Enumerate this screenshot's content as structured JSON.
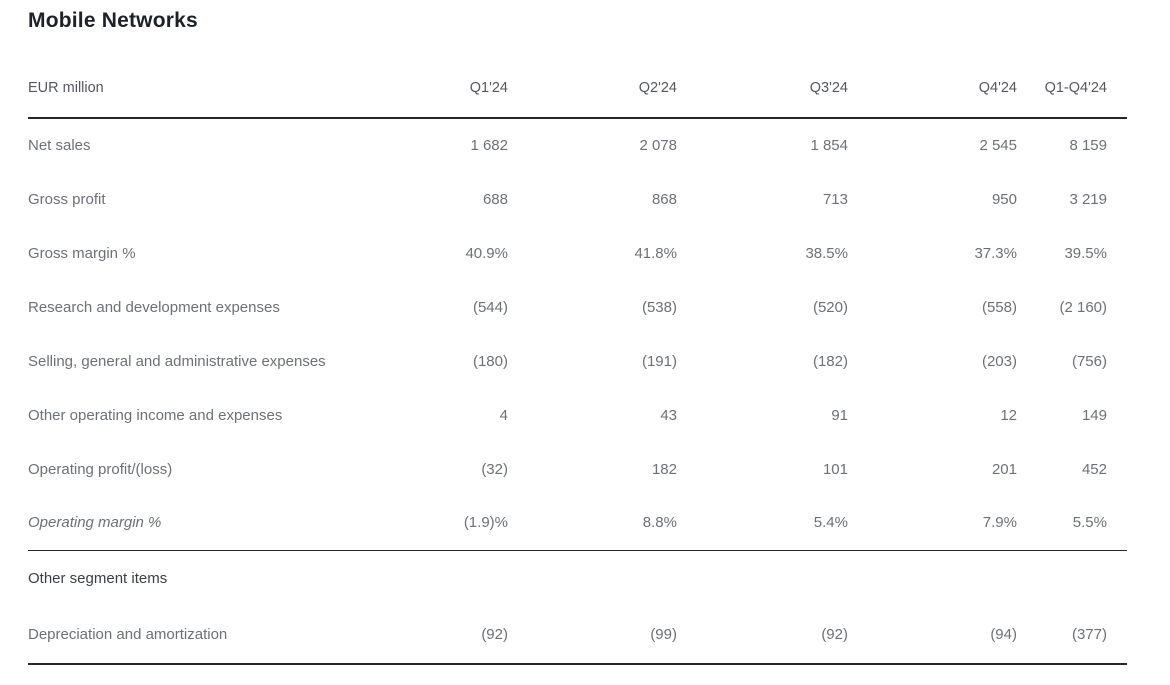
{
  "page": {
    "title": "Mobile Networks"
  },
  "table": {
    "unit_label": "EUR million",
    "columns": [
      "Q1'24",
      "Q2'24",
      "Q3'24",
      "Q4'24",
      "Q1-Q4'24"
    ],
    "rows": [
      {
        "label": "Net sales",
        "style": "normal",
        "values": [
          "1 682",
          "2 078",
          "1 854",
          "2 545",
          "8 159"
        ]
      },
      {
        "label": "Gross profit",
        "style": "normal",
        "values": [
          "688",
          "868",
          "713",
          "950",
          "3 219"
        ]
      },
      {
        "label": "Gross margin %",
        "style": "normal",
        "values": [
          "40.9%",
          "41.8%",
          "38.5%",
          "37.3%",
          "39.5%"
        ]
      },
      {
        "label": "Research and development expenses",
        "style": "normal",
        "values": [
          "(544)",
          "(538)",
          "(520)",
          "(558)",
          "(2 160)"
        ]
      },
      {
        "label": "Selling, general and administrative expenses",
        "style": "normal",
        "values": [
          "(180)",
          "(191)",
          "(182)",
          "(203)",
          "(756)"
        ]
      },
      {
        "label": "Other operating income and expenses",
        "style": "normal",
        "values": [
          "4",
          "43",
          "91",
          "12",
          "149"
        ]
      },
      {
        "label": "Operating profit/(loss)",
        "style": "normal",
        "values": [
          "(32)",
          "182",
          "101",
          "201",
          "452"
        ]
      },
      {
        "label": "Operating margin %",
        "style": "italic",
        "values": [
          "(1.9)%",
          "8.8%",
          "5.4%",
          "7.9%",
          "5.5%"
        ]
      }
    ],
    "section": {
      "label": "Other segment items",
      "rows": [
        {
          "label": "Depreciation and amortization",
          "style": "normal",
          "values": [
            "(92)",
            "(99)",
            "(92)",
            "(94)",
            "(377)"
          ]
        }
      ]
    }
  },
  "colors": {
    "background": "#ffffff",
    "title": "#1e2228",
    "header_text": "#55585d",
    "body_text": "#6d7075",
    "section_text": "#3a3e44",
    "rule_dark": "#25272b"
  }
}
